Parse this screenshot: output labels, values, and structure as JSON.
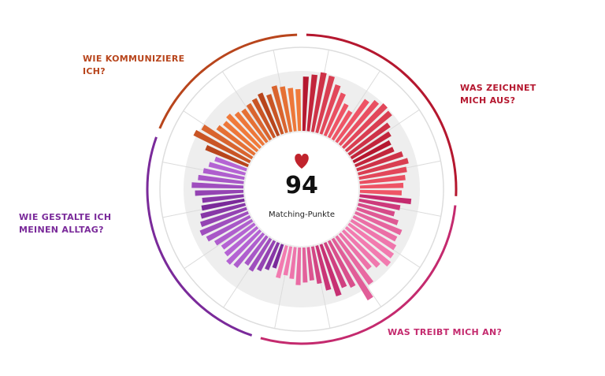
{
  "chart_data": {
    "type": "radial_bar",
    "score": 94,
    "score_label": "Matching-Punkte",
    "rlim": [
      0,
      100
    ],
    "series": [
      {
        "name": "WAS ZEICHNET MICH AUS?",
        "color": "#b5172f",
        "color2": "#ef5566",
        "values": [
          65,
          68,
          72,
          70,
          62,
          55,
          45,
          40,
          62,
          68,
          72,
          70,
          60,
          55,
          50,
          50,
          58,
          62,
          58,
          55,
          52,
          50
        ]
      },
      {
        "name": "WAS TREIBT MICH AN?",
        "color": "#c42a6e",
        "color2": "#f27bb0",
        "values": [
          62,
          50,
          45,
          52,
          60,
          58,
          62,
          65,
          68,
          60,
          55,
          70,
          85,
          62,
          58,
          65,
          55,
          45,
          40,
          42,
          45,
          38,
          35,
          40
        ]
      },
      {
        "name": "WIE GESTALTE ICH MEINEN ALLTAG?",
        "color": "#7a2a9a",
        "color2": "#b564d4",
        "values": [
          30,
          35,
          40,
          45,
          42,
          52,
          55,
          50,
          48,
          52,
          58,
          62,
          58,
          55,
          52,
          50,
          58,
          62,
          55,
          50,
          45,
          40
        ]
      },
      {
        "name": "WIE KOMMUNIZIERE ICH?",
        "color": "#b8451c",
        "color2": "#f07a3a",
        "values": [
          55,
          75,
          70,
          55,
          52,
          55,
          50,
          48,
          50,
          52,
          55,
          50,
          58,
          55,
          52,
          50
        ]
      }
    ]
  }
}
